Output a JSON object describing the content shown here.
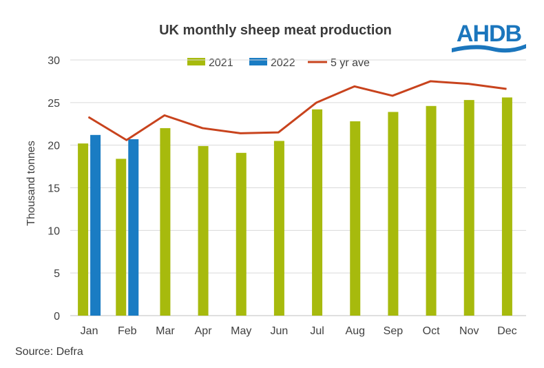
{
  "logo": {
    "text": "AHDB"
  },
  "source": "Source: Defra",
  "colors": {
    "s2021": "#a7ba0d",
    "s2022": "#1a7cc3",
    "avg": "#c8431d",
    "grid": "#d9d9d9"
  },
  "chart_data": {
    "type": "bar",
    "title": "UK monthly sheep meat production",
    "ylabel": "Thousand tonnes",
    "xlabel": "",
    "ylim": [
      0,
      30
    ],
    "yticks": [
      0,
      5,
      10,
      15,
      20,
      25,
      30
    ],
    "grid": true,
    "legend_position": "top",
    "categories": [
      "Jan",
      "Feb",
      "Mar",
      "Apr",
      "May",
      "Jun",
      "Jul",
      "Aug",
      "Sep",
      "Oct",
      "Nov",
      "Dec"
    ],
    "series": [
      {
        "name": "2021",
        "kind": "bar",
        "values": [
          20.2,
          18.4,
          22.0,
          19.9,
          19.1,
          20.5,
          24.2,
          22.8,
          23.9,
          24.6,
          25.3,
          25.6
        ]
      },
      {
        "name": "2022",
        "kind": "bar",
        "values": [
          21.2,
          20.7,
          null,
          null,
          null,
          null,
          null,
          null,
          null,
          null,
          null,
          null
        ]
      },
      {
        "name": "5 yr ave",
        "kind": "line",
        "values": [
          23.3,
          20.6,
          23.5,
          22.0,
          21.4,
          21.5,
          25.0,
          26.9,
          25.8,
          27.5,
          27.2,
          26.6
        ]
      }
    ]
  }
}
